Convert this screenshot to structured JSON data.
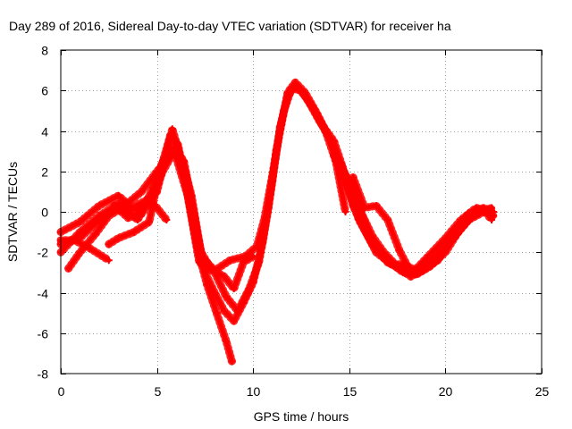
{
  "chart_data": {
    "type": "scatter",
    "title": "Day 289 of 2016, Sidereal Day-to-day VTEC variation (SDTVAR) for receiver ha",
    "xlabel": "GPS time / hours",
    "ylabel": "SDTVAR / TECUs",
    "xlim": [
      0,
      25
    ],
    "ylim": [
      -8,
      8
    ],
    "x_ticks": [
      "0",
      "5",
      "10",
      "15",
      "20",
      "25"
    ],
    "y_ticks": [
      "-8",
      "-6",
      "-4",
      "-2",
      "0",
      "2",
      "4",
      "6",
      "8"
    ],
    "grid": true,
    "legend": "none",
    "marker": "plus",
    "color": "#ff0000",
    "series": [
      {
        "points": [
          [
            0.0,
            -1.0
          ],
          [
            1.0,
            -0.5
          ],
          [
            2.0,
            0.3
          ],
          [
            3.0,
            0.8
          ],
          [
            3.7,
            0.2
          ],
          [
            4.5,
            0.6
          ],
          [
            5.0,
            0.2
          ],
          [
            5.5,
            -0.4
          ]
        ]
      },
      {
        "points": [
          [
            0.0,
            -2.0
          ],
          [
            1.0,
            -1.0
          ],
          [
            2.0,
            -0.2
          ],
          [
            3.0,
            0.4
          ],
          [
            4.0,
            -0.4
          ],
          [
            4.8,
            1.2
          ],
          [
            5.3,
            2.5
          ],
          [
            5.9,
            3.2
          ],
          [
            6.4,
            2.5
          ],
          [
            6.9,
            0.0
          ],
          [
            7.3,
            -2.0
          ],
          [
            7.8,
            -2.8
          ],
          [
            8.5,
            -3.2
          ],
          [
            9.0,
            -3.8
          ],
          [
            9.5,
            -2.5
          ],
          [
            10.0,
            -2.2
          ]
        ]
      },
      {
        "points": [
          [
            0.4,
            -2.8
          ],
          [
            1.0,
            -2.0
          ],
          [
            1.8,
            -1.1
          ],
          [
            2.5,
            -0.2
          ],
          [
            3.2,
            0.2
          ],
          [
            4.2,
            1.0
          ],
          [
            5.0,
            2.0
          ],
          [
            5.8,
            2.9
          ],
          [
            6.3,
            2.6
          ],
          [
            6.8,
            0.8
          ],
          [
            7.2,
            -1.5
          ],
          [
            7.5,
            -3.0
          ],
          [
            8.0,
            -4.0
          ],
          [
            8.5,
            -4.9
          ],
          [
            9.0,
            -5.4
          ],
          [
            9.5,
            -4.5
          ],
          [
            10.0,
            -3.5
          ],
          [
            10.5,
            -1.5
          ],
          [
            11.0,
            1.5
          ],
          [
            11.4,
            4.2
          ],
          [
            11.8,
            5.7
          ],
          [
            12.2,
            6.3
          ],
          [
            12.8,
            5.6
          ],
          [
            13.5,
            4.4
          ],
          [
            14.2,
            3.5
          ],
          [
            14.8,
            1.8
          ],
          [
            15.5,
            0.2
          ],
          [
            16.2,
            -1.5
          ],
          [
            17.0,
            -2.4
          ],
          [
            17.8,
            -3.0
          ],
          [
            18.5,
            -3.1
          ],
          [
            19.2,
            -2.7
          ],
          [
            20.0,
            -2.0
          ],
          [
            20.8,
            -0.8
          ],
          [
            21.5,
            -0.1
          ],
          [
            22.0,
            0.1
          ],
          [
            22.4,
            -0.4
          ]
        ]
      },
      {
        "points": [
          [
            0.0,
            -1.4
          ],
          [
            0.7,
            -1.4
          ],
          [
            1.5,
            -1.8
          ],
          [
            2.5,
            -2.4
          ]
        ]
      },
      {
        "points": [
          [
            2.5,
            -1.6
          ],
          [
            3.0,
            -1.3
          ],
          [
            3.8,
            -1.0
          ],
          [
            4.6,
            -0.5
          ],
          [
            5.1,
            1.8
          ],
          [
            5.7,
            3.8
          ],
          [
            6.1,
            3.3
          ],
          [
            6.6,
            0.8
          ],
          [
            7.1,
            -1.8
          ],
          [
            7.6,
            -3.6
          ],
          [
            8.1,
            -5.0
          ],
          [
            8.6,
            -6.4
          ],
          [
            8.9,
            -7.4
          ]
        ]
      },
      {
        "points": [
          [
            0.0,
            -1.6
          ],
          [
            1.0,
            -1.3
          ],
          [
            2.0,
            -0.4
          ],
          [
            3.0,
            0.3
          ],
          [
            4.0,
            0.1
          ],
          [
            5.0,
            1.0
          ],
          [
            5.8,
            4.1
          ],
          [
            6.2,
            2.8
          ],
          [
            6.8,
            0.3
          ],
          [
            7.3,
            -2.2
          ],
          [
            8.0,
            -2.9
          ],
          [
            8.8,
            -2.4
          ],
          [
            9.6,
            -2.2
          ],
          [
            10.2,
            -1.7
          ],
          [
            10.6,
            -0.3
          ],
          [
            11.0,
            1.8
          ],
          [
            11.4,
            4.0
          ],
          [
            11.8,
            5.9
          ],
          [
            12.2,
            6.4
          ],
          [
            12.7,
            5.9
          ],
          [
            13.3,
            4.9
          ],
          [
            14.0,
            3.6
          ],
          [
            14.7,
            2.0
          ],
          [
            15.2,
            1.2
          ],
          [
            15.6,
            0.0
          ],
          [
            16.2,
            -1.2
          ],
          [
            16.8,
            -2.0
          ],
          [
            17.5,
            -2.7
          ],
          [
            18.3,
            -3.0
          ],
          [
            19.0,
            -2.3
          ],
          [
            20.0,
            -1.3
          ],
          [
            20.8,
            -0.4
          ],
          [
            21.6,
            0.2
          ],
          [
            22.3,
            0.0
          ]
        ]
      },
      {
        "points": [
          [
            2.8,
            0.3
          ],
          [
            3.5,
            -0.3
          ],
          [
            4.2,
            -0.1
          ],
          [
            4.8,
            0.8
          ],
          [
            5.3,
            2.0
          ],
          [
            5.9,
            3.0
          ],
          [
            6.6,
            0.8
          ],
          [
            7.2,
            -2.5
          ],
          [
            8.0,
            -3.0
          ],
          [
            8.6,
            -4.2
          ],
          [
            9.2,
            -4.9
          ],
          [
            9.8,
            -3.8
          ],
          [
            10.3,
            -2.5
          ],
          [
            10.8,
            0.2
          ],
          [
            11.2,
            3.0
          ],
          [
            11.6,
            5.0
          ],
          [
            12.0,
            6.1
          ],
          [
            12.5,
            6.0
          ],
          [
            13.2,
            5.0
          ],
          [
            13.8,
            3.9
          ],
          [
            14.3,
            2.5
          ],
          [
            14.8,
            0.0
          ]
        ]
      },
      {
        "points": [
          [
            14.2,
            2.8
          ],
          [
            14.8,
            1.5
          ],
          [
            15.5,
            -0.4
          ],
          [
            16.2,
            -1.6
          ],
          [
            17.0,
            -2.5
          ],
          [
            17.6,
            -2.8
          ],
          [
            18.2,
            -3.2
          ],
          [
            18.8,
            -2.9
          ],
          [
            19.6,
            -2.4
          ],
          [
            20.4,
            -1.2
          ],
          [
            21.2,
            -0.1
          ],
          [
            22.0,
            0.2
          ],
          [
            22.5,
            0.0
          ]
        ]
      },
      {
        "points": [
          [
            15.2,
            1.7
          ],
          [
            15.8,
            0.2
          ],
          [
            16.4,
            0.3
          ],
          [
            17.0,
            -0.4
          ],
          [
            17.6,
            -1.9
          ],
          [
            18.2,
            -3.0
          ],
          [
            18.8,
            -2.8
          ],
          [
            19.6,
            -2.2
          ],
          [
            20.5,
            -1.2
          ],
          [
            21.3,
            -0.3
          ],
          [
            22.0,
            0.1
          ],
          [
            22.5,
            -0.2
          ]
        ]
      },
      {
        "points": [
          [
            14.6,
            2.3
          ],
          [
            15.2,
            0.3
          ],
          [
            15.8,
            -0.9
          ],
          [
            16.4,
            -2.0
          ],
          [
            17.2,
            -2.6
          ],
          [
            17.8,
            -2.6
          ],
          [
            18.5,
            -2.9
          ],
          [
            19.3,
            -2.4
          ],
          [
            20.3,
            -1.4
          ],
          [
            21.2,
            -0.4
          ],
          [
            22.0,
            0.0
          ],
          [
            22.4,
            0.2
          ]
        ]
      }
    ]
  }
}
